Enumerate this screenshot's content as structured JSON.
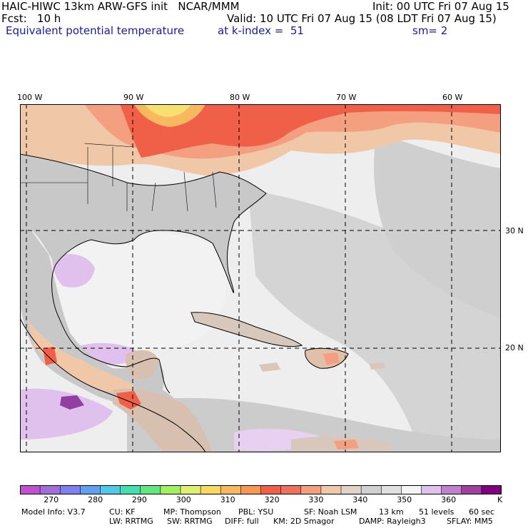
{
  "header": {
    "line1_left": "HAIC-HIWC 13km ARW-GFS init   NCAR/MMM",
    "line1_right": "Init: 00 UTC Fri 07 Aug 15",
    "line2_left": "Fcst:   10 h",
    "line2_right": "Valid: 10 UTC Fri 07 Aug 15 (08 LDT Fri 07 Aug 15)",
    "line3_field": "Equivalent potential temperature",
    "line3_level": "at k-index =  51",
    "line3_smooth": "sm= 2"
  },
  "map": {
    "lon_labels": [
      "100 W",
      "90 W",
      "80 W",
      "70 W",
      "60 W"
    ],
    "lat_labels": [
      "30 N",
      "20 N"
    ],
    "colors": {
      "land_gray": "#c8c8c8",
      "ocean_light": "#eeeeee",
      "mid_gray": "#d4d4d4",
      "warm_tan": "#f0c8a8",
      "salmon": "#f4a080",
      "red": "#f06048",
      "orange": "#f8b860",
      "yellow": "#f8e070",
      "lavender": "#e0c0ec",
      "purple": "#9040a0"
    }
  },
  "legend": {
    "unit": "K",
    "colors": [
      "#c050d0",
      "#a070d8",
      "#8080f0",
      "#60a0f0",
      "#50c8e8",
      "#40e0b0",
      "#60e880",
      "#a0f060",
      "#e0f070",
      "#f8d860",
      "#f8b860",
      "#f89850",
      "#f06048",
      "#f07060",
      "#f4a080",
      "#f0c8a8",
      "#e0d4c8",
      "#d0d0d0",
      "#e0e0e0",
      "#f4f4f4",
      "#e0c0ec",
      "#c080d0",
      "#a040a0",
      "#800080"
    ],
    "ticks": [
      "270",
      "280",
      "290",
      "300",
      "310",
      "320",
      "330",
      "340",
      "350",
      "360"
    ]
  },
  "footer": {
    "line1": [
      "Model Info: V3.7",
      "CU: KF",
      "MP: Thompson",
      "PBL: YSU",
      "SF: Noah LSM",
      "13 km",
      "51 levels",
      "60 sec"
    ],
    "line2": [
      "LW: RRTMG",
      "SW: RRTMG",
      "DIFF: full",
      "KM: 2D Smagor",
      "DAMP: Rayleigh3",
      "SFLAY: MM5"
    ]
  }
}
